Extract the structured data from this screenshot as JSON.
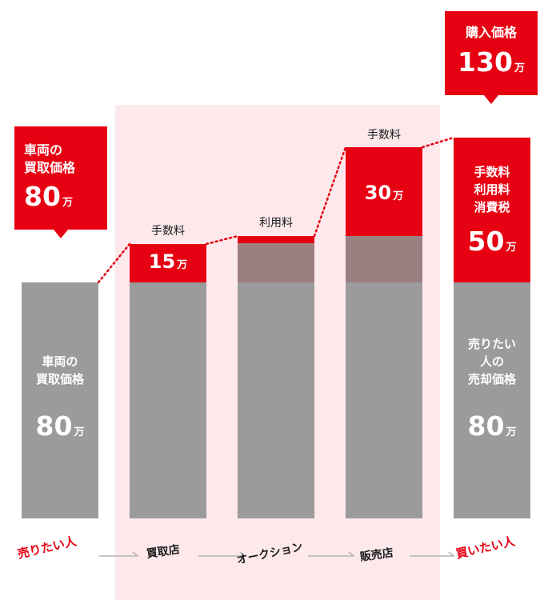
{
  "seller_callout": {
    "line1": "車両の",
    "line2": "買取価格",
    "value": "80",
    "unit": "万"
  },
  "buyer_callout": {
    "line1": "購入価格",
    "value": "130",
    "unit": "万"
  },
  "bars": {
    "seller": {
      "line1": "車両の",
      "line2": "買取価格",
      "value": "80",
      "unit": "万"
    },
    "dealer": {
      "top_label": "手数料",
      "fee_value": "15",
      "unit": "万"
    },
    "auction": {
      "top_label": "利用料"
    },
    "shop": {
      "top_label": "手数料",
      "fee_value": "30",
      "unit": "万"
    },
    "buyer": {
      "fee_line1": "手数料",
      "fee_line2": "利用料",
      "fee_line3": "消費税",
      "fee_value": "50",
      "unit": "万",
      "base_line1": "売りたい",
      "base_line2": "人の",
      "base_line3": "売却価格",
      "base_value": "80"
    }
  },
  "flow": {
    "seller": "売りたい人",
    "dealer": "買取店",
    "auction": "オークション",
    "shop": "販売店",
    "buyer": "買いたい人"
  },
  "colors": {
    "red": "#e60012",
    "gray": "#9b9b9b",
    "mauve": "#9c7f81",
    "pink_band": "#fde9ec"
  }
}
